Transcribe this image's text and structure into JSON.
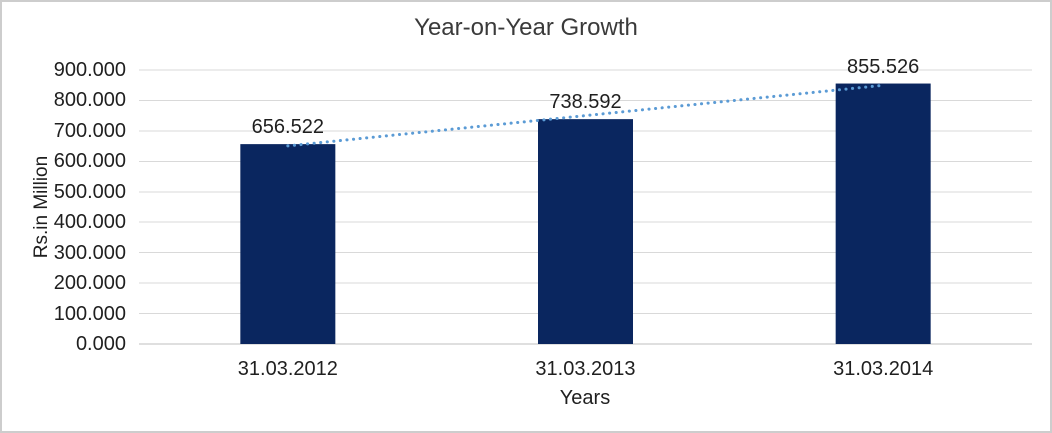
{
  "chart_data": {
    "type": "bar",
    "title": "Year-on-Year Growth",
    "xlabel": "Years",
    "ylabel": "Rs.in Million",
    "categories": [
      "31.03.2012",
      "31.03.2013",
      "31.03.2014"
    ],
    "values": [
      656.522,
      738.592,
      855.526
    ],
    "data_labels": [
      "656.522",
      "738.592",
      "855.526"
    ],
    "ylim": [
      0,
      900
    ],
    "ytick_step": 100,
    "ytick_labels": [
      "0.000",
      "100.000",
      "200.000",
      "300.000",
      "400.000",
      "500.000",
      "600.000",
      "700.000",
      "800.000",
      "900.000"
    ],
    "grid": true,
    "legend": "none",
    "trendline": {
      "type": "linear",
      "style": "dotted"
    },
    "colors": {
      "bar": "#0a265f",
      "trendline": "#5b9bd5",
      "gridline": "#d9d9d9",
      "axis_line": "#bfbfbf",
      "text": "#1f1f1f",
      "title_text": "#3a3a3a",
      "frame_border": "#cdcdcd",
      "background": "#ffffff"
    }
  }
}
